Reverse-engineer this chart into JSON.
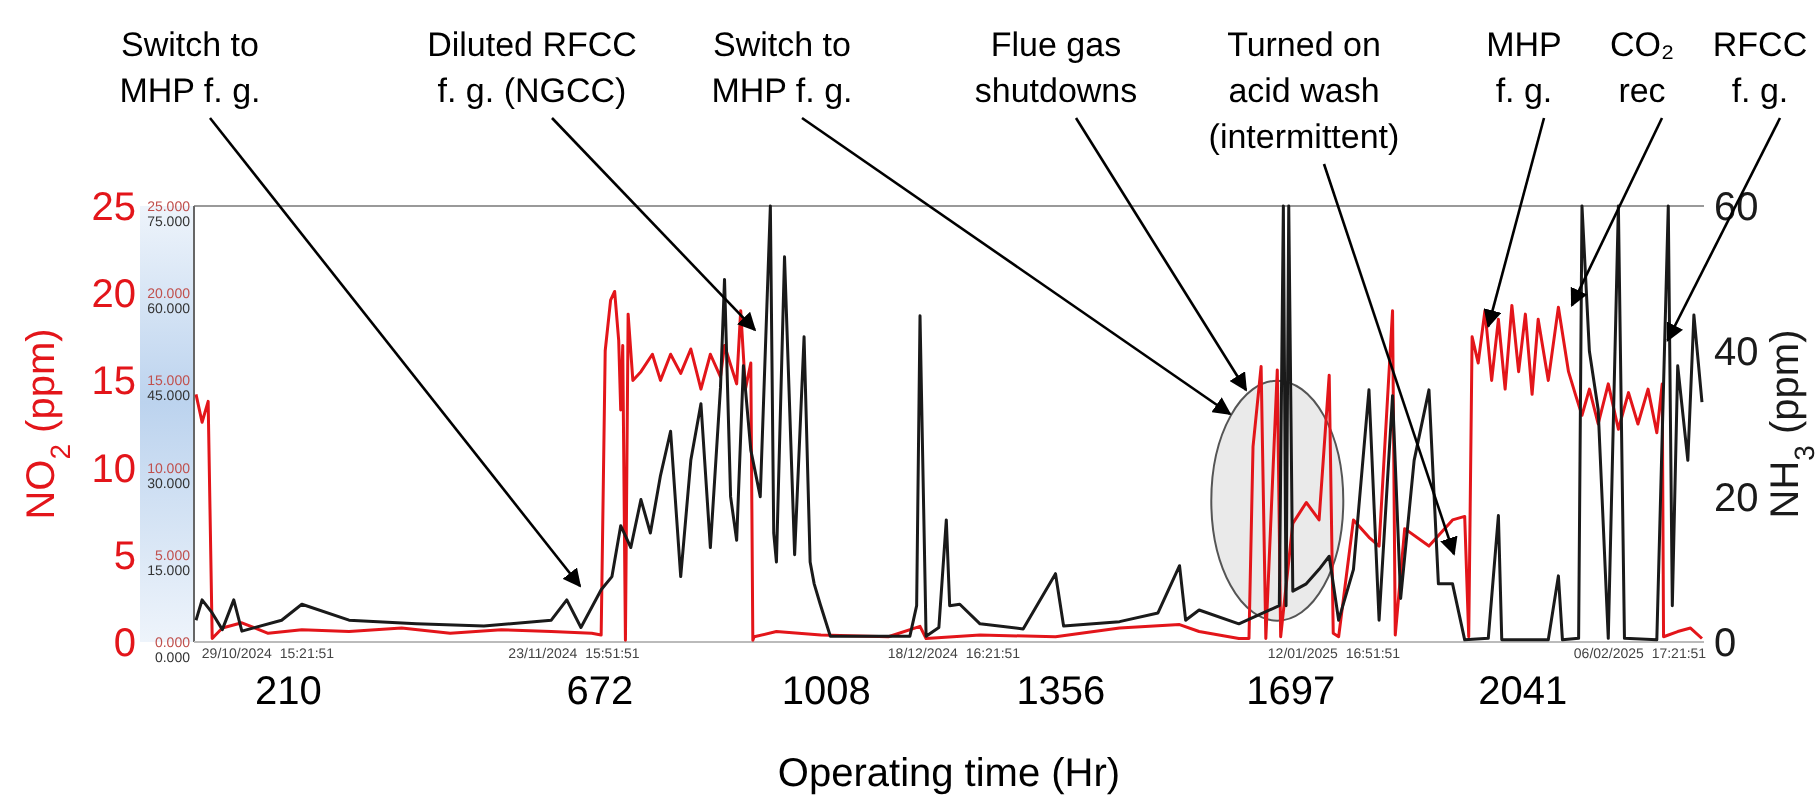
{
  "chart_data": {
    "type": "line",
    "xlabel": "Operating time (Hr)",
    "ylabel": "NO$_{2}$ (ppm)",
    "y2label": "NH$_{3}$ (ppm)",
    "xlim": [
      70,
      2310
    ],
    "xticks": [
      210,
      672,
      1008,
      1356,
      1697,
      2041
    ],
    "ylim": [
      0,
      25
    ],
    "yticks": [
      0,
      5,
      10,
      15,
      20,
      25
    ],
    "y2lim": [
      0,
      60
    ],
    "y2ticks": [
      0,
      20,
      40,
      60
    ],
    "y3lim": [
      0,
      25
    ],
    "y3ticks": [
      {
        "value": 0,
        "label": "0.000"
      },
      {
        "value": 5,
        "label": "5.000"
      },
      {
        "value": 10,
        "label": "10.000"
      },
      {
        "value": 15,
        "label": "15.000"
      },
      {
        "value": 20,
        "label": "20.000"
      },
      {
        "value": 25,
        "label": "25.000"
      }
    ],
    "series": [
      {
        "color": "#e3151a",
        "x": [
          73,
          82,
          91,
          97,
          112,
          141,
          180,
          230,
          300,
          378,
          450,
          526,
          600,
          660,
          674,
          680,
          688,
          694,
          700,
          703,
          706,
          710,
          714,
          721,
          733,
          750,
          762,
          777,
          792,
          807,
          822,
          836,
          851,
          857,
          875,
          881,
          888,
          896,
          899,
          901,
          934,
          1000,
          1100,
          1147,
          1156,
          1236,
          1348,
          1443,
          1532,
          1561,
          1620,
          1635,
          1641,
          1653,
          1660,
          1677,
          1682,
          1700,
          1720,
          1739,
          1754,
          1760,
          1768,
          1790,
          1813,
          1828,
          1848,
          1852,
          1866,
          1902,
          1937,
          1955,
          1961,
          1966,
          1975,
          1985,
          1995,
          2005,
          2015,
          2025,
          2035,
          2045,
          2055,
          2064,
          2079,
          2094,
          2109,
          2120,
          2129,
          2140,
          2153,
          2168,
          2183,
          2198,
          2212,
          2227,
          2240,
          2248,
          2250,
          2271,
          2290,
          2307
        ],
        "values": [
          14.2,
          12.6,
          13.8,
          0.2,
          0.8,
          1.1,
          0.5,
          0.7,
          0.6,
          0.8,
          0.5,
          0.7,
          0.6,
          0.5,
          0.4,
          16.7,
          19.6,
          20.1,
          17.3,
          13.3,
          17,
          0.1,
          18.8,
          15,
          15.5,
          16.5,
          15,
          16.5,
          15.4,
          16.8,
          14.5,
          16.5,
          15.2,
          17,
          14.8,
          19,
          14.5,
          16,
          0.1,
          0.3,
          0.6,
          0.4,
          0.3,
          0.9,
          0.2,
          0.4,
          0.3,
          0.8,
          1,
          0.6,
          0.2,
          0.2,
          11.2,
          15.8,
          0.2,
          15.6,
          0.3,
          6.8,
          8,
          7,
          15.3,
          0.5,
          0.3,
          7,
          6,
          5.5,
          19,
          0.4,
          6.5,
          5.5,
          7,
          7.2,
          0.3,
          17.5,
          16,
          19,
          15,
          18.5,
          14.5,
          19.3,
          15.5,
          18.8,
          14.2,
          18.5,
          15,
          19.2,
          15.5,
          14.1,
          13,
          14.5,
          12.5,
          14.8,
          12.2,
          14.3,
          12.5,
          14.5,
          12,
          14.8,
          0.3,
          0.6,
          0.8,
          0.2
        ]
      },
      {
        "color": "#1a1a1a",
        "axis": "y2",
        "x": [
          73,
          82,
          97,
          112,
          129,
          141,
          200,
          230,
          300,
          400,
          500,
          600,
          623,
          644,
          674,
          690,
          703,
          718,
          733,
          747,
          762,
          777,
          792,
          807,
          822,
          836,
          851,
          857,
          866,
          875,
          885,
          896,
          910,
          925,
          930,
          934,
          946,
          961,
          975,
          984,
          990,
          999,
          1014,
          1132,
          1142,
          1147,
          1156,
          1175,
          1186,
          1191,
          1206,
          1236,
          1300,
          1348,
          1360,
          1443,
          1500,
          1532,
          1541,
          1561,
          1620,
          1680,
          1686,
          1690,
          1694,
          1700,
          1720,
          1739,
          1754,
          1768,
          1790,
          1813,
          1828,
          1848,
          1860,
          1880,
          1902,
          1916,
          1937,
          1955,
          1990,
          2005,
          2010,
          2079,
          2094,
          2100,
          2124,
          2129,
          2140,
          2153,
          2168,
          2183,
          2192,
          2240,
          2257,
          2263,
          2271,
          2286,
          2295,
          2307
        ],
        "values": [
          3,
          5.8,
          4,
          1.7,
          5.8,
          1.5,
          3,
          5.2,
          3,
          2.5,
          2.2,
          3,
          5.8,
          2,
          7.2,
          9,
          16,
          13,
          19.6,
          15,
          22.9,
          29,
          9,
          25,
          32.8,
          13,
          35,
          49.9,
          20,
          14,
          38,
          26.4,
          20,
          60,
          15,
          11,
          53,
          12,
          42,
          11,
          8,
          5.2,
          0.8,
          0.8,
          5,
          44.9,
          0.8,
          2,
          16.8,
          5,
          5.2,
          2.5,
          1.8,
          9.4,
          2.2,
          2.8,
          4,
          10.5,
          3,
          4.4,
          2.5,
          5,
          60,
          5,
          60,
          7,
          8,
          10,
          11.8,
          3,
          10,
          34.7,
          3,
          33.9,
          6,
          25,
          34.7,
          8,
          8,
          0.3,
          0.5,
          17.4,
          0.3,
          0.3,
          9.1,
          0.3,
          0.5,
          60,
          40,
          32,
          0.5,
          60,
          0.5,
          0.3,
          60,
          5,
          38,
          25,
          45,
          33
        ]
      }
    ],
    "annotations": [
      "Switch to\nMHP f. g.",
      {
        "text": "Diluted RFCC\nf. g. (NGCC)",
        "x": 902,
        "y": 17.9
      },
      "Switch to\nMHP f. g.",
      "Flue gas\nshutdowns",
      "Turned on\nacid wash\n(intermittent)",
      {
        "text": "MHP\nf. g.",
        "x": 1990,
        "y": 18.1
      },
      {
        "text": "CO₂\nrec",
        "x": 2114,
        "y": 19.3
      },
      {
        "text": "RFCC\nf. g.",
        "x": 2256,
        "y": 17.3
      },
      "29/10/2024  15:21:51",
      "23/11/2024  15:51:51",
      "18/12/2024  16:21:51",
      "12/01/2025  16:51:51",
      "06/02/2025  17:21:51",
      "0.000",
      "15.000",
      "30.000",
      "45.000",
      "60.000",
      "75.000"
    ]
  }
}
